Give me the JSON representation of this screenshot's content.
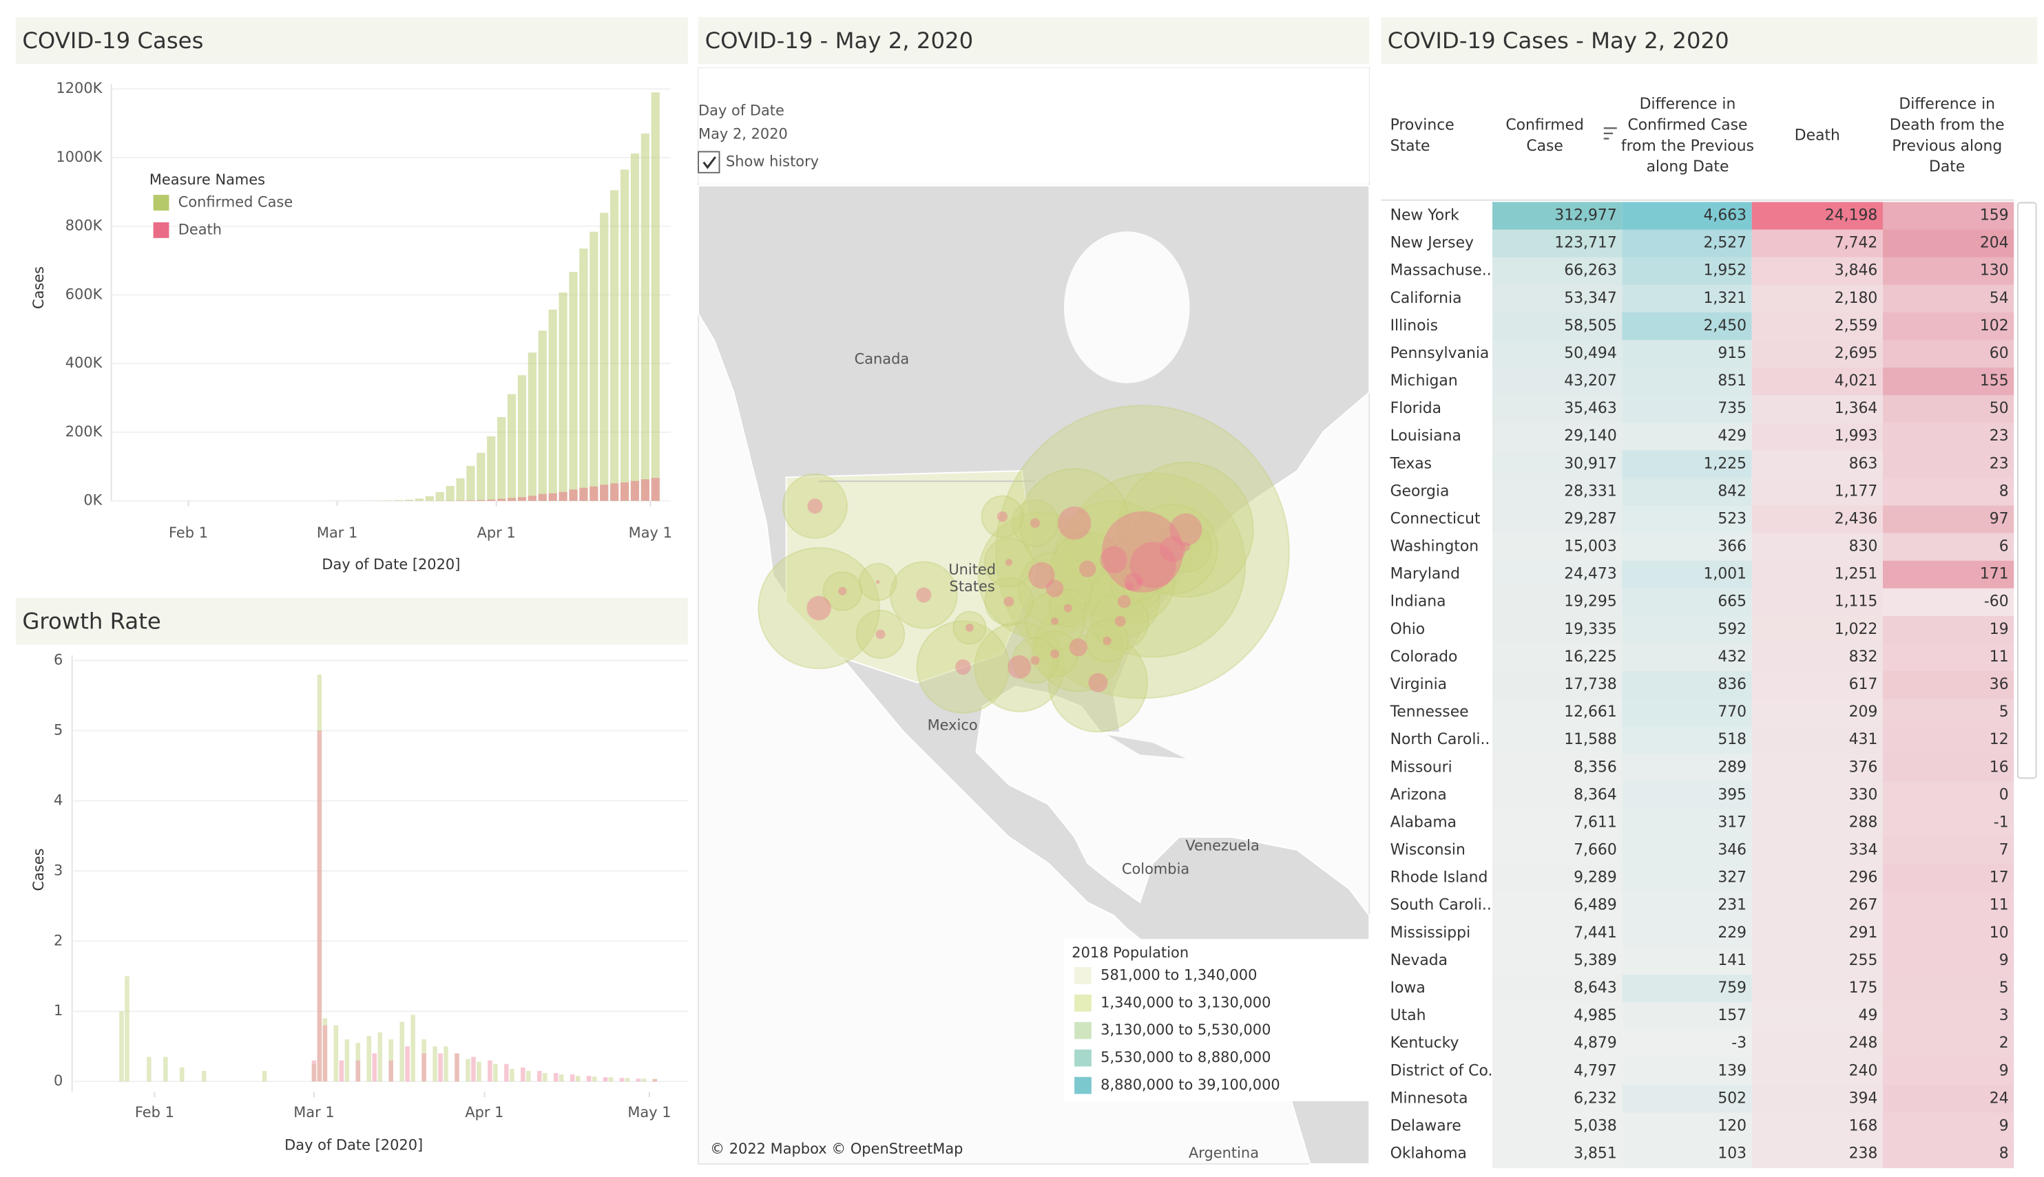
{
  "chart_data": [
    {
      "type": "bar",
      "title": "COVID-19 Cases",
      "x_label": "Day of Date [2020]",
      "y_label": "Cases",
      "legend_title": "Measure Names",
      "xlim": [
        "2020-01-17",
        "2020-05-05"
      ],
      "xticks": [
        {
          "value": "2020-02-01",
          "label": "Feb 1"
        },
        {
          "value": "2020-03-01",
          "label": "Mar 1"
        },
        {
          "value": "2020-04-01",
          "label": "Apr 1"
        },
        {
          "value": "2020-05-01",
          "label": "May 1"
        }
      ],
      "ylim": [
        0,
        1200000
      ],
      "yticks": [
        {
          "value": 0,
          "label": "0K"
        },
        {
          "value": 200000,
          "label": "200K"
        },
        {
          "value": 400000,
          "label": "400K"
        },
        {
          "value": 600000,
          "label": "600K"
        },
        {
          "value": 800000,
          "label": "800K"
        },
        {
          "value": 1000000,
          "label": "1000K"
        },
        {
          "value": 1200000,
          "label": "1200K"
        }
      ],
      "grid": true,
      "series": [
        {
          "name": "Confirmed Case",
          "color": "#b5c96a",
          "x": [
            "2020-03-01",
            "2020-03-03",
            "2020-03-05",
            "2020-03-07",
            "2020-03-09",
            "2020-03-11",
            "2020-03-13",
            "2020-03-15",
            "2020-03-17",
            "2020-03-19",
            "2020-03-21",
            "2020-03-23",
            "2020-03-25",
            "2020-03-27",
            "2020-03-29",
            "2020-03-31",
            "2020-04-02",
            "2020-04-04",
            "2020-04-06",
            "2020-04-08",
            "2020-04-10",
            "2020-04-12",
            "2020-04-14",
            "2020-04-16",
            "2020-04-18",
            "2020-04-20",
            "2020-04-22",
            "2020-04-24",
            "2020-04-26",
            "2020-04-28",
            "2020-04-30",
            "2020-05-02"
          ],
          "values": [
            75,
            120,
            220,
            430,
            700,
            1300,
            2200,
            3500,
            6500,
            13700,
            25500,
            43700,
            65800,
            102000,
            140000,
            188000,
            244000,
            311000,
            366000,
            432000,
            496000,
            557000,
            607000,
            667000,
            735000,
            784000,
            839000,
            905000,
            965000,
            1012000,
            1070000,
            1190000
          ]
        },
        {
          "name": "Death",
          "color": "#e96b86",
          "x": [
            "2020-03-01",
            "2020-03-03",
            "2020-03-05",
            "2020-03-07",
            "2020-03-09",
            "2020-03-11",
            "2020-03-13",
            "2020-03-15",
            "2020-03-17",
            "2020-03-19",
            "2020-03-21",
            "2020-03-23",
            "2020-03-25",
            "2020-03-27",
            "2020-03-29",
            "2020-03-31",
            "2020-04-02",
            "2020-04-04",
            "2020-04-06",
            "2020-04-08",
            "2020-04-10",
            "2020-04-12",
            "2020-04-14",
            "2020-04-16",
            "2020-04-18",
            "2020-04-20",
            "2020-04-22",
            "2020-04-24",
            "2020-04-26",
            "2020-04-28",
            "2020-04-30",
            "2020-05-02"
          ],
          "values": [
            1,
            7,
            11,
            17,
            22,
            37,
            50,
            68,
            108,
            200,
            330,
            550,
            1000,
            1600,
            2500,
            4000,
            6000,
            8500,
            10800,
            14800,
            20000,
            22000,
            26000,
            33000,
            38000,
            42000,
            47000,
            51000,
            54000,
            58000,
            63000,
            67000
          ]
        }
      ]
    },
    {
      "type": "bar",
      "title": "Growth Rate",
      "x_label": "Day of Date [2020]",
      "y_label": "Cases",
      "xlim": [
        "2020-01-17",
        "2020-05-08"
      ],
      "xticks": [
        {
          "value": "2020-02-01",
          "label": "Feb 1"
        },
        {
          "value": "2020-03-01",
          "label": "Mar 1"
        },
        {
          "value": "2020-04-01",
          "label": "Apr 1"
        },
        {
          "value": "2020-05-01",
          "label": "May 1"
        }
      ],
      "ylim": [
        -0.15,
        6
      ],
      "yticks": [
        0,
        1,
        2,
        3,
        4,
        5,
        6
      ],
      "grid": true,
      "series": [
        {
          "name": "Confirmed Case",
          "color": "#c9d98f",
          "x": [
            "2020-01-26",
            "2020-01-27",
            "2020-01-31",
            "2020-02-03",
            "2020-02-06",
            "2020-02-10",
            "2020-02-21",
            "2020-03-01",
            "2020-03-02",
            "2020-03-03",
            "2020-03-05",
            "2020-03-07",
            "2020-03-09",
            "2020-03-11",
            "2020-03-13",
            "2020-03-15",
            "2020-03-17",
            "2020-03-19",
            "2020-03-21",
            "2020-03-23",
            "2020-03-25",
            "2020-03-27",
            "2020-03-29",
            "2020-03-31",
            "2020-04-03",
            "2020-04-06",
            "2020-04-09",
            "2020-04-12",
            "2020-04-15",
            "2020-04-18",
            "2020-04-21",
            "2020-04-24",
            "2020-04-27",
            "2020-04-30",
            "2020-05-02"
          ],
          "values": [
            1.0,
            1.5,
            0.35,
            0.35,
            0.2,
            0.15,
            0.15,
            0.25,
            5.8,
            0.9,
            0.8,
            0.6,
            0.55,
            0.65,
            0.7,
            0.6,
            0.85,
            0.95,
            0.6,
            0.5,
            0.5,
            0.4,
            0.32,
            0.28,
            0.25,
            0.18,
            0.15,
            0.12,
            0.1,
            0.08,
            0.07,
            0.06,
            0.05,
            0.04,
            0.04
          ]
        },
        {
          "name": "Death",
          "color": "#f09aae",
          "x": [
            "2020-03-01",
            "2020-03-02",
            "2020-03-03",
            "2020-03-06",
            "2020-03-09",
            "2020-03-12",
            "2020-03-15",
            "2020-03-18",
            "2020-03-21",
            "2020-03-24",
            "2020-03-27",
            "2020-03-30",
            "2020-04-02",
            "2020-04-05",
            "2020-04-08",
            "2020-04-11",
            "2020-04-14",
            "2020-04-17",
            "2020-04-20",
            "2020-04-23",
            "2020-04-26",
            "2020-04-29",
            "2020-05-02"
          ],
          "values": [
            0.3,
            5.0,
            0.8,
            0.3,
            0.3,
            0.4,
            0.3,
            0.5,
            0.4,
            0.4,
            0.4,
            0.35,
            0.3,
            0.25,
            0.2,
            0.15,
            0.12,
            0.1,
            0.08,
            0.06,
            0.05,
            0.04,
            0.03
          ]
        }
      ]
    }
  ],
  "map": {
    "title": "COVID-19 - May 2, 2020",
    "filter_label": "Day of Date",
    "filter_value": "May 2, 2020",
    "checkbox_label": "Show history",
    "place_labels": [
      "Canada",
      "United",
      "States",
      "Mexico",
      "Venezuela",
      "Colombia",
      "Argentina"
    ],
    "bubble_color": "#cbd585",
    "death_bubble_color": "#ec7a90",
    "legend_title": "2018 Population",
    "legend": [
      {
        "label": "581,000 to 1,340,000",
        "color": "#f2f4df"
      },
      {
        "label": "1,340,000 to 3,130,000",
        "color": "#e5edb9"
      },
      {
        "label": "3,130,000 to 5,530,000",
        "color": "#cfe5c0"
      },
      {
        "label": "5,530,000 to 8,880,000",
        "color": "#a6d8cb"
      },
      {
        "label": "8,880,000 to 39,100,000",
        "color": "#7cc8cf"
      }
    ],
    "attribution": "© 2022 Mapbox © OpenStreetMap"
  },
  "table": {
    "title": "COVID-19 Cases - May 2, 2020",
    "headers": [
      [
        "Province",
        "State"
      ],
      [
        "Confirmed",
        "Case"
      ],
      [
        "Difference in",
        "Confirmed Case",
        "from the Previous",
        "along Date"
      ],
      [
        "Death"
      ],
      [
        "Difference in",
        "Death from the",
        "Previous along",
        "Date"
      ]
    ],
    "cell_colors": [
      [
        "#eef0ef",
        "#88cbcc"
      ],
      [
        "#eef0ef",
        "#7ecad3"
      ],
      [
        "#f1e6e8",
        "#ee7a90"
      ],
      [
        "#f3e4e7",
        "#e7a0ae"
      ]
    ],
    "rows": [
      [
        "New York",
        "312,977",
        "4,663",
        "24,198",
        "159"
      ],
      [
        "New Jersey",
        "123,717",
        "2,527",
        "7,742",
        "204"
      ],
      [
        "Massachuse..",
        "66,263",
        "1,952",
        "3,846",
        "130"
      ],
      [
        "California",
        "53,347",
        "1,321",
        "2,180",
        "54"
      ],
      [
        "Illinois",
        "58,505",
        "2,450",
        "2,559",
        "102"
      ],
      [
        "Pennsylvania",
        "50,494",
        "915",
        "2,695",
        "60"
      ],
      [
        "Michigan",
        "43,207",
        "851",
        "4,021",
        "155"
      ],
      [
        "Florida",
        "35,463",
        "735",
        "1,364",
        "50"
      ],
      [
        "Louisiana",
        "29,140",
        "429",
        "1,993",
        "23"
      ],
      [
        "Texas",
        "30,917",
        "1,225",
        "863",
        "23"
      ],
      [
        "Georgia",
        "28,331",
        "842",
        "1,177",
        "8"
      ],
      [
        "Connecticut",
        "29,287",
        "523",
        "2,436",
        "97"
      ],
      [
        "Washington",
        "15,003",
        "366",
        "830",
        "6"
      ],
      [
        "Maryland",
        "24,473",
        "1,001",
        "1,251",
        "171"
      ],
      [
        "Indiana",
        "19,295",
        "665",
        "1,115",
        "-60"
      ],
      [
        "Ohio",
        "19,335",
        "592",
        "1,022",
        "19"
      ],
      [
        "Colorado",
        "16,225",
        "432",
        "832",
        "11"
      ],
      [
        "Virginia",
        "17,738",
        "836",
        "617",
        "36"
      ],
      [
        "Tennessee",
        "12,661",
        "770",
        "209",
        "5"
      ],
      [
        "North Caroli..",
        "11,588",
        "518",
        "431",
        "12"
      ],
      [
        "Missouri",
        "8,356",
        "289",
        "376",
        "16"
      ],
      [
        "Arizona",
        "8,364",
        "395",
        "330",
        "0"
      ],
      [
        "Alabama",
        "7,611",
        "317",
        "288",
        "-1"
      ],
      [
        "Wisconsin",
        "7,660",
        "346",
        "334",
        "7"
      ],
      [
        "Rhode Island",
        "9,289",
        "327",
        "296",
        "17"
      ],
      [
        "South Caroli..",
        "6,489",
        "231",
        "267",
        "11"
      ],
      [
        "Mississippi",
        "7,441",
        "229",
        "291",
        "10"
      ],
      [
        "Nevada",
        "5,389",
        "141",
        "255",
        "9"
      ],
      [
        "Iowa",
        "8,643",
        "759",
        "175",
        "5"
      ],
      [
        "Utah",
        "4,985",
        "157",
        "49",
        "3"
      ],
      [
        "Kentucky",
        "4,879",
        "-3",
        "248",
        "2"
      ],
      [
        "District of Co..",
        "4,797",
        "139",
        "240",
        "9"
      ],
      [
        "Minnesota",
        "6,232",
        "502",
        "394",
        "24"
      ],
      [
        "Delaware",
        "5,038",
        "120",
        "168",
        "9"
      ],
      [
        "Oklahoma",
        "3,851",
        "103",
        "238",
        "8"
      ]
    ]
  }
}
